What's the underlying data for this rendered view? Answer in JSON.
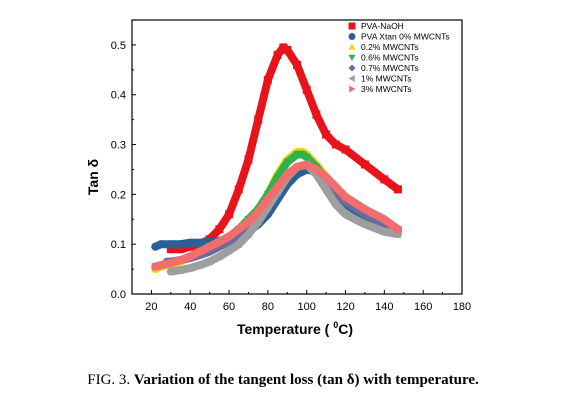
{
  "chart_data": {
    "type": "scatter",
    "xlabel_text": "Temperature ( ",
    "xlabel_sup": "0",
    "xlabel_unit": "C)",
    "ylabel": "Tan δ",
    "xlim": [
      10,
      180
    ],
    "ylim": [
      0.0,
      0.55
    ],
    "x_ticks": [
      20,
      40,
      60,
      80,
      100,
      120,
      140,
      160,
      180
    ],
    "y_ticks": [
      0.0,
      0.1,
      0.2,
      0.3,
      0.4,
      0.5
    ],
    "x_tick_labels": [
      "20",
      "40",
      "60",
      "80",
      "100",
      "120",
      "140",
      "160",
      "180"
    ],
    "y_tick_labels": [
      "0.0",
      "0.1",
      "0.2",
      "0.3",
      "0.4",
      "0.5"
    ],
    "legend_position": "top-right",
    "series": [
      {
        "name": "PVA-NaOH",
        "color": "#e8141b",
        "marker": "square",
        "x": [
          30,
          35,
          40,
          45,
          50,
          55,
          60,
          65,
          70,
          75,
          80,
          85,
          88,
          90,
          95,
          100,
          105,
          110,
          115,
          120,
          130,
          140,
          147
        ],
        "y": [
          0.09,
          0.09,
          0.095,
          0.1,
          0.11,
          0.13,
          0.16,
          0.21,
          0.27,
          0.35,
          0.43,
          0.48,
          0.495,
          0.49,
          0.46,
          0.41,
          0.36,
          0.32,
          0.3,
          0.29,
          0.26,
          0.23,
          0.21
        ]
      },
      {
        "name": "PVA Xtan 0% MWCNTs",
        "color": "#2b5f98",
        "marker": "circle",
        "x": [
          22,
          25,
          30,
          35,
          40,
          45,
          50,
          55,
          60,
          65,
          70,
          75,
          80,
          85,
          90,
          95,
          100,
          105,
          110,
          115,
          120,
          130,
          140,
          147
        ],
        "y": [
          0.095,
          0.1,
          0.1,
          0.1,
          0.103,
          0.103,
          0.105,
          0.107,
          0.11,
          0.115,
          0.125,
          0.14,
          0.16,
          0.19,
          0.22,
          0.24,
          0.25,
          0.245,
          0.225,
          0.2,
          0.18,
          0.155,
          0.135,
          0.125
        ]
      },
      {
        "name": "0.2% MWCNTs",
        "color": "#f4d316",
        "marker": "triangle-up",
        "x": [
          22,
          25,
          30,
          35,
          40,
          45,
          50,
          55,
          60,
          65,
          70,
          75,
          80,
          85,
          90,
          95,
          98,
          100,
          105,
          110,
          115,
          120,
          130,
          140,
          147
        ],
        "y": [
          0.05,
          0.055,
          0.06,
          0.065,
          0.075,
          0.085,
          0.095,
          0.105,
          0.115,
          0.13,
          0.15,
          0.17,
          0.2,
          0.24,
          0.27,
          0.285,
          0.285,
          0.28,
          0.26,
          0.235,
          0.21,
          0.19,
          0.165,
          0.14,
          0.13
        ]
      },
      {
        "name": "0.6% MWCNTs",
        "color": "#2db34c",
        "marker": "triangle-down",
        "x": [
          22,
          25,
          30,
          35,
          40,
          45,
          50,
          55,
          60,
          65,
          70,
          75,
          80,
          85,
          90,
          95,
          98,
          100,
          105,
          110,
          115,
          120,
          130,
          140,
          147
        ],
        "y": [
          0.055,
          0.058,
          0.062,
          0.068,
          0.075,
          0.085,
          0.095,
          0.105,
          0.115,
          0.13,
          0.15,
          0.17,
          0.2,
          0.235,
          0.265,
          0.28,
          0.28,
          0.275,
          0.255,
          0.23,
          0.205,
          0.185,
          0.16,
          0.14,
          0.13
        ]
      },
      {
        "name": "0.7% MWCNTs",
        "color": "#6a6a9e",
        "marker": "diamond",
        "x": [
          28,
          30,
          35,
          40,
          45,
          50,
          55,
          60,
          65,
          70,
          75,
          80,
          85,
          90,
          95,
          100,
          105,
          110,
          115,
          120,
          130,
          140,
          147
        ],
        "y": [
          0.065,
          0.065,
          0.068,
          0.072,
          0.078,
          0.085,
          0.095,
          0.105,
          0.12,
          0.135,
          0.155,
          0.18,
          0.21,
          0.235,
          0.255,
          0.26,
          0.25,
          0.23,
          0.205,
          0.185,
          0.16,
          0.14,
          0.13
        ]
      },
      {
        "name": "1% MWCNTs",
        "color": "#9e9e9e",
        "marker": "triangle-left",
        "x": [
          30,
          35,
          40,
          45,
          50,
          55,
          60,
          65,
          70,
          75,
          80,
          85,
          90,
          95,
          100,
          105,
          110,
          115,
          120,
          130,
          140,
          147
        ],
        "y": [
          0.045,
          0.048,
          0.052,
          0.058,
          0.065,
          0.075,
          0.087,
          0.1,
          0.12,
          0.145,
          0.175,
          0.205,
          0.235,
          0.255,
          0.26,
          0.24,
          0.21,
          0.18,
          0.16,
          0.14,
          0.125,
          0.12
        ]
      },
      {
        "name": "3% MWCNTs",
        "color": "#f26d6d",
        "marker": "triangle-right",
        "x": [
          22,
          25,
          30,
          35,
          40,
          45,
          50,
          55,
          60,
          65,
          70,
          75,
          80,
          85,
          90,
          95,
          100,
          105,
          110,
          115,
          120,
          130,
          140,
          147
        ],
        "y": [
          0.055,
          0.058,
          0.062,
          0.068,
          0.075,
          0.085,
          0.095,
          0.105,
          0.115,
          0.13,
          0.145,
          0.165,
          0.19,
          0.215,
          0.24,
          0.255,
          0.26,
          0.25,
          0.235,
          0.215,
          0.195,
          0.17,
          0.15,
          0.13
        ]
      }
    ]
  },
  "caption": {
    "prefix": "FIG. 3. ",
    "bold": "Variation of the tangent loss (tan δ) with temperature."
  }
}
